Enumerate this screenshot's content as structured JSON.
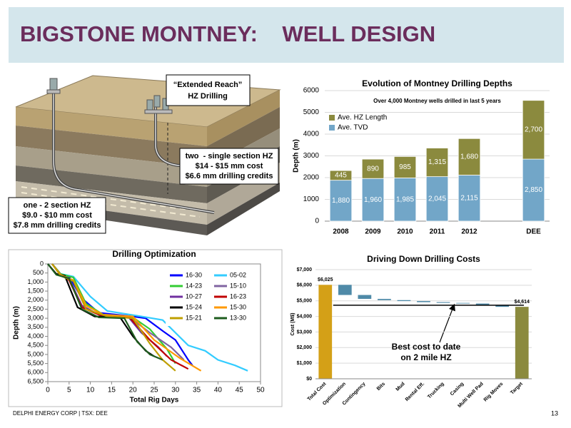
{
  "header": {
    "title": "BIGSTONE MONTNEY:    WELL DESIGN"
  },
  "diagram": {
    "callouts": [
      {
        "lines": [
          "“Extended Reach”",
          "HZ Drilling"
        ]
      },
      {
        "lines": [
          "two  - single section HZ",
          "$14 - $15 mm cost",
          "$6.6 mm drilling credits"
        ]
      },
      {
        "lines": [
          "one - 2 section HZ",
          "$9.0 - $10 mm cost",
          "$7.8 mm drilling credits"
        ]
      }
    ]
  },
  "chart_data": [
    {
      "type": "bar",
      "stacked": true,
      "title": "Evolution of Montney Drilling Depths",
      "subtitle": "Over 4,000 Montney wells drilled in last 5 years",
      "ylabel": "Depth (m)",
      "categories": [
        "2008",
        "2009",
        "2010",
        "2011",
        "2012",
        null,
        "DEE"
      ],
      "series": [
        {
          "name": "Ave. TVD",
          "color": "#72a6c8",
          "values": [
            1880,
            1960,
            1985,
            2045,
            2115,
            null,
            2850
          ],
          "value_labels": [
            "1,880",
            "1,960",
            "1,985",
            "2,045",
            "2,115",
            null,
            "2,850"
          ]
        },
        {
          "name": "Ave. HZ Length",
          "color": "#8b8a3e",
          "values": [
            445,
            890,
            985,
            1315,
            1680,
            null,
            2700
          ],
          "value_labels": [
            "445",
            "890",
            "985",
            "1,315",
            "1,680",
            null,
            "2,700"
          ]
        }
      ],
      "ylim": [
        0,
        6000
      ],
      "yticks": [
        0,
        1000,
        2000,
        3000,
        4000,
        5000,
        6000
      ],
      "grid": true,
      "legend": "upper left"
    },
    {
      "type": "line",
      "title": "Drilling Optimization",
      "xlabel": "Total Rig Days",
      "ylabel": "Depth (m)",
      "xlim": [
        0,
        50
      ],
      "xticks": [
        0,
        5,
        10,
        15,
        20,
        25,
        30,
        35,
        40,
        45,
        50
      ],
      "ylim": [
        0,
        6500
      ],
      "y_inverted": true,
      "yticks": [
        0,
        500,
        {
          "value": 1000,
          "label": "1,000"
        },
        {
          "value": 1500,
          "label": "1,500"
        },
        {
          "value": 2000,
          "label": "2,000"
        },
        {
          "value": 2500,
          "label": "2,500"
        },
        {
          "value": 3000,
          "label": "3,000"
        },
        {
          "value": 3500,
          "label": "3,500"
        },
        {
          "value": 4000,
          "label": "4,000"
        },
        {
          "value": 4500,
          "label": "4,500"
        },
        {
          "value": 5000,
          "label": "5,000"
        },
        {
          "value": 5500,
          "label": "5,500"
        },
        {
          "value": 6000,
          "label": "6,000"
        },
        {
          "value": 6500,
          "label": "6,500"
        }
      ],
      "legend": "upper right",
      "series": [
        {
          "name": "16-30",
          "color": "#0000ff",
          "x": [
            1,
            3,
            5,
            8,
            12,
            20,
            23,
            27,
            30,
            33,
            34
          ],
          "values": [
            0,
            550,
            700,
            1900,
            2700,
            2900,
            3000,
            3700,
            4200,
            5300,
            5600
          ]
        },
        {
          "name": "05-02",
          "color": "#33ccff",
          "x": [
            1,
            3,
            6,
            10,
            14,
            22,
            27,
            33,
            37,
            40,
            44,
            47
          ],
          "values": [
            0,
            550,
            700,
            1800,
            2600,
            2900,
            3100,
            4500,
            4800,
            5300,
            5600,
            5900
          ]
        },
        {
          "name": "14-23",
          "color": "#33cc33",
          "x": [
            1,
            3,
            6,
            9,
            13,
            20,
            24,
            28,
            30
          ],
          "values": [
            0,
            550,
            750,
            2200,
            2800,
            2950,
            3600,
            4700,
            5500
          ]
        },
        {
          "name": "15-10",
          "color": "#8064a2",
          "x": [
            1,
            3,
            5,
            8,
            12,
            19,
            24,
            29,
            32
          ],
          "values": [
            0,
            600,
            800,
            2300,
            2800,
            2900,
            3800,
            4600,
            5300
          ]
        },
        {
          "name": "10-27",
          "color": "#7030a0",
          "x": [
            1,
            3,
            5,
            8,
            12,
            19,
            22,
            26,
            28
          ],
          "values": [
            0,
            600,
            850,
            2300,
            2800,
            2950,
            3800,
            4600,
            5100
          ]
        },
        {
          "name": "16-23",
          "color": "#c00000",
          "x": [
            1,
            3,
            5,
            8,
            13,
            19,
            24,
            29,
            33
          ],
          "values": [
            0,
            600,
            900,
            2400,
            2900,
            2900,
            4200,
            5300,
            5800
          ]
        },
        {
          "name": "15-24",
          "color": "#000000",
          "x": [
            0,
            2,
            4,
            7,
            11,
            17,
            20,
            23,
            25
          ],
          "values": [
            0,
            550,
            650,
            2400,
            2900,
            2950,
            4000,
            4800,
            5100
          ]
        },
        {
          "name": "15-30",
          "color": "#ff9900",
          "x": [
            1,
            3,
            6,
            9,
            13,
            20,
            25,
            31,
            36
          ],
          "values": [
            0,
            600,
            900,
            2300,
            2800,
            2900,
            4200,
            5200,
            5900
          ]
        },
        {
          "name": "15-21",
          "color": "#bf9f00",
          "x": [
            1,
            3,
            6,
            9,
            14,
            20,
            24,
            27,
            30
          ],
          "values": [
            0,
            650,
            950,
            2500,
            2900,
            3000,
            4400,
            5300,
            5900
          ]
        },
        {
          "name": "13-30",
          "color": "#1e5c1e",
          "x": [
            0,
            2,
            5,
            8,
            12,
            18,
            21,
            24,
            27
          ],
          "values": [
            0,
            600,
            800,
            2500,
            2950,
            3000,
            4300,
            5000,
            5300
          ]
        }
      ]
    },
    {
      "type": "waterfall",
      "title": "Driving Down Drilling Costs",
      "ylabel": "Cost (M$)",
      "categories": [
        "Total Cost",
        "Optimization",
        "Contingency",
        "Bits",
        "Mud",
        "Rental Eff.",
        "Trucking",
        "Casing",
        "Multi Well Pad",
        "Rig Moves",
        "Target"
      ],
      "values": [
        6025,
        -650,
        -250,
        -80,
        -60,
        -70,
        -50,
        -40,
        -110,
        -101,
        4614
      ],
      "value_labels": [
        "$6,025",
        null,
        null,
        null,
        null,
        null,
        null,
        null,
        null,
        null,
        "$4,614"
      ],
      "colors": [
        "#d4a017",
        "#4f8aa8",
        "#4f8aa8",
        "#4f8aa8",
        "#4f8aa8",
        "#4f8aa8",
        "#4f8aa8",
        "#4f8aa8",
        "#4f8aa8",
        "#4f8aa8",
        "#8b8a3e"
      ],
      "ylim": [
        0,
        7000
      ],
      "yticks": [
        {
          "value": 0,
          "label": "$0"
        },
        {
          "value": 1000,
          "label": "$1,000"
        },
        {
          "value": 2000,
          "label": "$2,000"
        },
        {
          "value": 3000,
          "label": "$3,000"
        },
        {
          "value": 4000,
          "label": "$4,000"
        },
        {
          "value": 5000,
          "label": "$5,000"
        },
        {
          "value": 6000,
          "label": "$6,000"
        },
        {
          "value": 7000,
          "label": "$7,000"
        }
      ],
      "grid": true,
      "reference_line": 4720,
      "annotation": [
        "Best cost to date",
        "on 2 mile HZ"
      ]
    }
  ],
  "footer": {
    "text": "DELPHI ENERGY CORP | TSX: DEE",
    "page_number": "13"
  }
}
